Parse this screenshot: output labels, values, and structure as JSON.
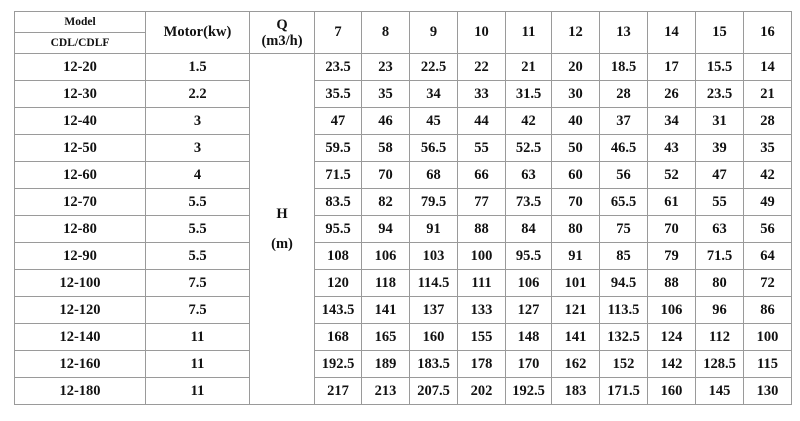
{
  "header": {
    "model_label": "Model",
    "model_series": "CDL/CDLF",
    "motor_label": "Motor(kw)",
    "q_label": "Q",
    "q_unit": "(m3/h)",
    "flows": [
      "7",
      "8",
      "9",
      "10",
      "11",
      "12",
      "13",
      "14",
      "15",
      "16"
    ]
  },
  "h_label": "H",
  "h_unit": "(m)",
  "rows": [
    {
      "model": "12-20",
      "motor": "1.5",
      "values": [
        "23.5",
        "23",
        "22.5",
        "22",
        "21",
        "20",
        "18.5",
        "17",
        "15.5",
        "14"
      ]
    },
    {
      "model": "12-30",
      "motor": "2.2",
      "values": [
        "35.5",
        "35",
        "34",
        "33",
        "31.5",
        "30",
        "28",
        "26",
        "23.5",
        "21"
      ]
    },
    {
      "model": "12-40",
      "motor": "3",
      "values": [
        "47",
        "46",
        "45",
        "44",
        "42",
        "40",
        "37",
        "34",
        "31",
        "28"
      ]
    },
    {
      "model": "12-50",
      "motor": "3",
      "values": [
        "59.5",
        "58",
        "56.5",
        "55",
        "52.5",
        "50",
        "46.5",
        "43",
        "39",
        "35"
      ]
    },
    {
      "model": "12-60",
      "motor": "4",
      "values": [
        "71.5",
        "70",
        "68",
        "66",
        "63",
        "60",
        "56",
        "52",
        "47",
        "42"
      ]
    },
    {
      "model": "12-70",
      "motor": "5.5",
      "values": [
        "83.5",
        "82",
        "79.5",
        "77",
        "73.5",
        "70",
        "65.5",
        "61",
        "55",
        "49"
      ]
    },
    {
      "model": "12-80",
      "motor": "5.5",
      "values": [
        "95.5",
        "94",
        "91",
        "88",
        "84",
        "80",
        "75",
        "70",
        "63",
        "56"
      ]
    },
    {
      "model": "12-90",
      "motor": "5.5",
      "values": [
        "108",
        "106",
        "103",
        "100",
        "95.5",
        "91",
        "85",
        "79",
        "71.5",
        "64"
      ]
    },
    {
      "model": "12-100",
      "motor": "7.5",
      "values": [
        "120",
        "118",
        "114.5",
        "111",
        "106",
        "101",
        "94.5",
        "88",
        "80",
        "72"
      ]
    },
    {
      "model": "12-120",
      "motor": "7.5",
      "values": [
        "143.5",
        "141",
        "137",
        "133",
        "127",
        "121",
        "113.5",
        "106",
        "96",
        "86"
      ]
    },
    {
      "model": "12-140",
      "motor": "11",
      "values": [
        "168",
        "165",
        "160",
        "155",
        "148",
        "141",
        "132.5",
        "124",
        "112",
        "100"
      ]
    },
    {
      "model": "12-160",
      "motor": "11",
      "values": [
        "192.5",
        "189",
        "183.5",
        "178",
        "170",
        "162",
        "152",
        "142",
        "128.5",
        "115"
      ]
    },
    {
      "model": "12-180",
      "motor": "11",
      "values": [
        "217",
        "213",
        "207.5",
        "202",
        "192.5",
        "183",
        "171.5",
        "160",
        "145",
        "130"
      ]
    }
  ]
}
